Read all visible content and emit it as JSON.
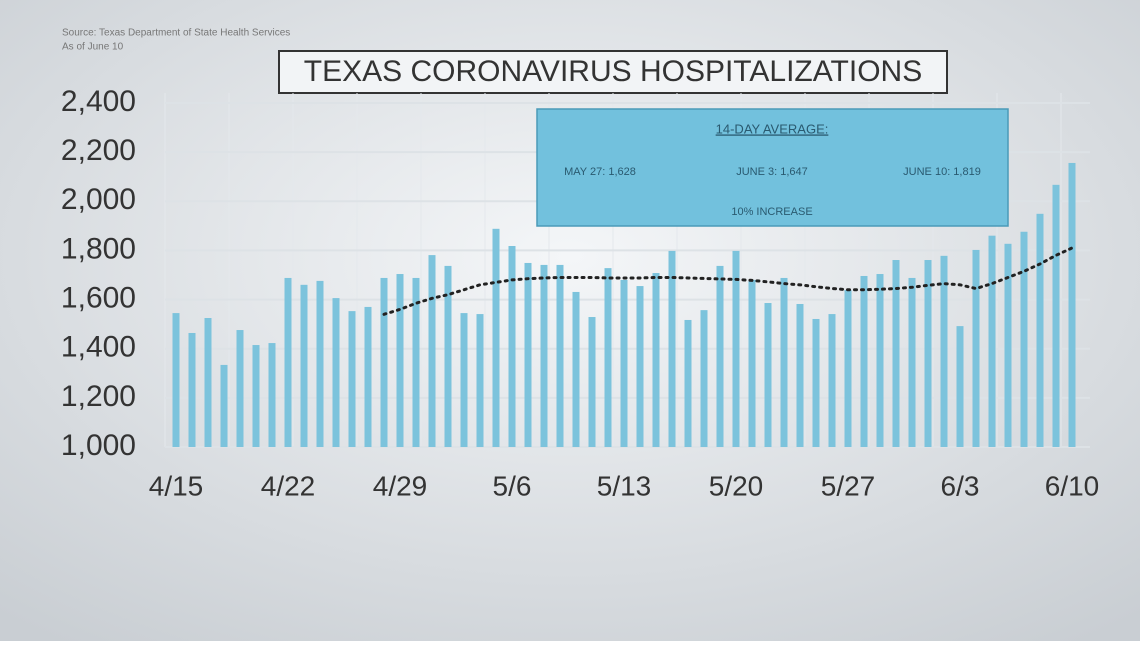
{
  "chart_data": {
    "type": "bar",
    "title": "TEXAS CORONAVIRUS HOSPITALIZATIONS",
    "source": "Source: Texas Department of State Health Services",
    "date_note": "As of June 10",
    "annotation": {
      "heading": "14-DAY AVERAGE:",
      "items": [
        "MAY 27: 1,628",
        "JUNE 3: 1,647",
        "JUNE 10: 1,819"
      ],
      "footer": "10% INCREASE"
    },
    "categories": [
      "4/15",
      null,
      null,
      null,
      null,
      null,
      null,
      "4/22",
      null,
      null,
      null,
      null,
      null,
      null,
      "4/29",
      null,
      null,
      null,
      null,
      null,
      null,
      "5/6",
      null,
      null,
      null,
      null,
      null,
      null,
      "5/13",
      null,
      null,
      null,
      null,
      null,
      null,
      "5/20",
      null,
      null,
      null,
      null,
      null,
      null,
      "5/27",
      null,
      null,
      null,
      null,
      null,
      null,
      "6/3",
      null,
      null,
      null,
      null,
      null,
      null,
      "6/10"
    ],
    "series": [
      {
        "name": "Hospitalizations",
        "color": "#7cc3dc",
        "values": [
          1545,
          1464,
          1525,
          1334,
          1476,
          1415,
          1423,
          1688,
          1660,
          1676,
          1606,
          1553,
          1570,
          1688,
          1704,
          1688,
          1781,
          1737,
          1545,
          1541,
          1888,
          1818,
          1749,
          1741,
          1741,
          1631,
          1529,
          1728,
          1680,
          1655,
          1708,
          1798,
          1517,
          1557,
          1737,
          1798,
          1680,
          1586,
          1688,
          1582,
          1521,
          1541,
          1639,
          1696,
          1704,
          1761,
          1688,
          1761,
          1778,
          1492,
          1802,
          1860,
          1827,
          1876,
          1949,
          2067,
          2156
        ]
      },
      {
        "name": "14-day average",
        "color": "#222222",
        "style": "dotted",
        "values": [
          null,
          null,
          null,
          null,
          null,
          null,
          null,
          null,
          null,
          null,
          null,
          null,
          null,
          1540,
          1560,
          1585,
          1605,
          1620,
          1640,
          1660,
          1670,
          1680,
          1685,
          1688,
          1690,
          1690,
          1690,
          1688,
          1688,
          1688,
          1690,
          1690,
          1688,
          1686,
          1684,
          1682,
          1678,
          1672,
          1665,
          1660,
          1652,
          1645,
          1640,
          1640,
          1642,
          1645,
          1650,
          1658,
          1665,
          1660,
          1645,
          1665,
          1690,
          1715,
          1745,
          1780,
          1810
        ]
      }
    ],
    "ylim": [
      1000,
      2400
    ],
    "yticks": [
      {
        "value": 1000,
        "label": "1,000"
      },
      {
        "value": 1200,
        "label": "1,200"
      },
      {
        "value": 1400,
        "label": "1,400"
      },
      {
        "value": 1600,
        "label": "1,600"
      },
      {
        "value": 1800,
        "label": "1,800"
      },
      {
        "value": 2000,
        "label": "2,000"
      },
      {
        "value": 2200,
        "label": "2,200"
      },
      {
        "value": 2400,
        "label": "2,400"
      }
    ],
    "grid": true
  }
}
